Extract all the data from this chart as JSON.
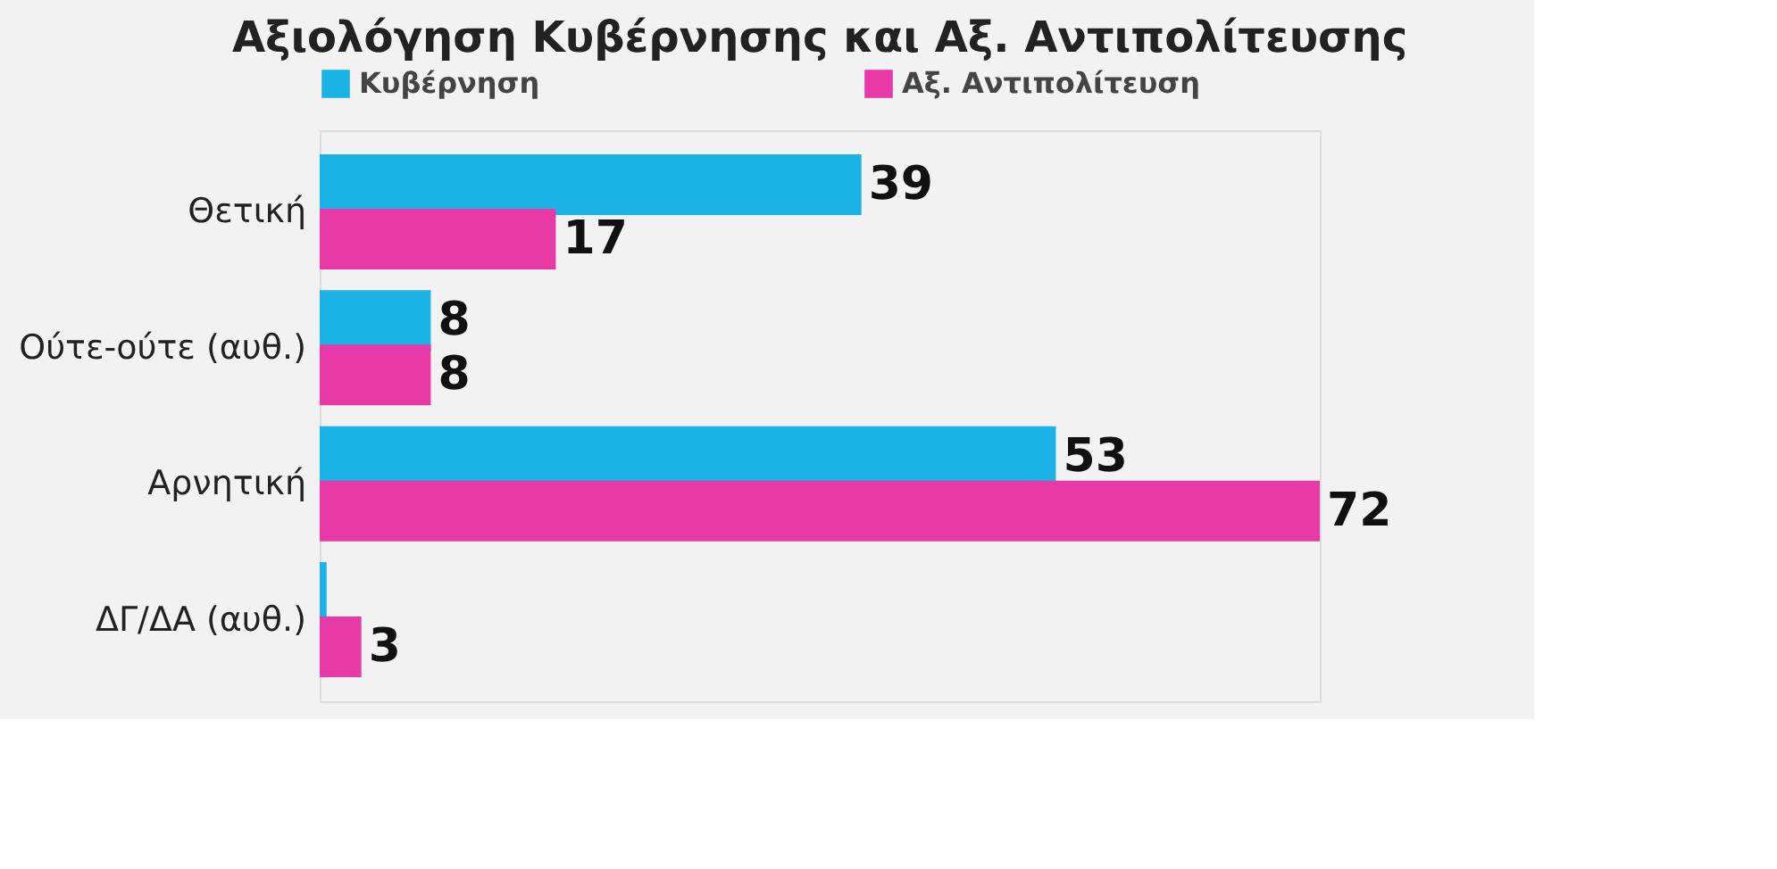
{
  "chart_data": {
    "type": "bar",
    "orientation": "horizontal",
    "title": "Αξιολόγηση Κυβέρνησης και Αξ. Αντιπολίτευσης",
    "categories": [
      "Θετική",
      "Ούτε-ούτε (αυθ.)",
      "Αρνητική",
      "ΔΓ/ΔΑ (αυθ.)"
    ],
    "series": [
      {
        "name": "Κυβέρνηση",
        "color": "#1bb3e6",
        "values": [
          39,
          8,
          53,
          0.5
        ],
        "value_labels": [
          "39",
          "8",
          "53",
          null
        ]
      },
      {
        "name": "Αξ. Αντιπολίτευση",
        "color": "#e83aa6",
        "values": [
          17,
          8,
          72,
          3
        ],
        "value_labels": [
          "17",
          "8",
          "72",
          "3"
        ]
      }
    ],
    "legend": "top",
    "grid": false
  }
}
